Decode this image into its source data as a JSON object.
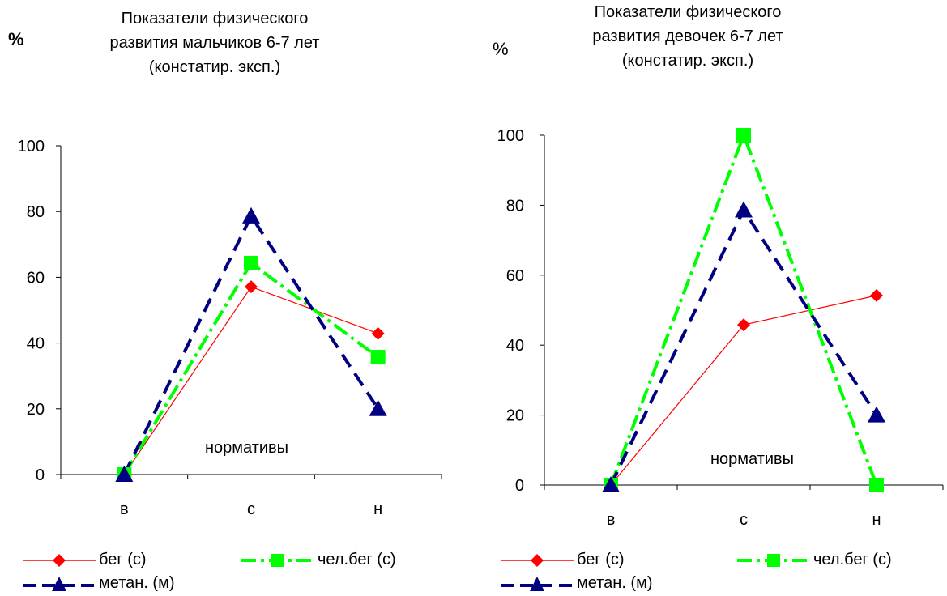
{
  "chart_data": [
    {
      "type": "line",
      "title": "Показатели физического\nразвития мальчиков 6-7 лет\n(констатир. эксп.)",
      "ylabel": "%",
      "ylabel_bold": true,
      "annotation": "нормативы",
      "categories": [
        "в",
        "с",
        "н"
      ],
      "ylim": [
        0,
        100
      ],
      "yticks": [
        "0",
        "20",
        "40",
        "60",
        "80",
        "100"
      ],
      "grid": false,
      "legend_position": "bottom",
      "series": [
        {
          "name": "бег (с)",
          "values": [
            0,
            57.1,
            42.9
          ],
          "color": "#ff0000",
          "marker": "diamond",
          "dash": "solid"
        },
        {
          "name": "чел.бег (с)",
          "values": [
            0,
            64.3,
            35.7
          ],
          "color": "#00ff00",
          "marker": "square",
          "dash": "dashdot"
        },
        {
          "name": "метан. (м)",
          "values": [
            0,
            78.6,
            20.0
          ],
          "color": "#000080",
          "marker": "triangle",
          "dash": "dash"
        }
      ]
    },
    {
      "type": "line",
      "title": "Показатели физического\nразвития девочек 6-7 лет\n(констатир. эксп.)",
      "ylabel": "%",
      "ylabel_bold": false,
      "annotation": "нормативы",
      "categories": [
        "в",
        "с",
        "н"
      ],
      "ylim": [
        0,
        100
      ],
      "yticks": [
        "0",
        "20",
        "40",
        "60",
        "80",
        "100"
      ],
      "grid": false,
      "legend_position": "bottom",
      "series": [
        {
          "name": "бег (с)",
          "values": [
            0,
            45.8,
            54.2
          ],
          "color": "#ff0000",
          "marker": "diamond",
          "dash": "solid"
        },
        {
          "name": "чел.бег (с)",
          "values": [
            0,
            100,
            0
          ],
          "color": "#00ff00",
          "marker": "square",
          "dash": "dashdot"
        },
        {
          "name": "метан. (м)",
          "values": [
            0,
            78.6,
            20.0
          ],
          "color": "#000080",
          "marker": "triangle",
          "dash": "dash"
        }
      ]
    }
  ]
}
